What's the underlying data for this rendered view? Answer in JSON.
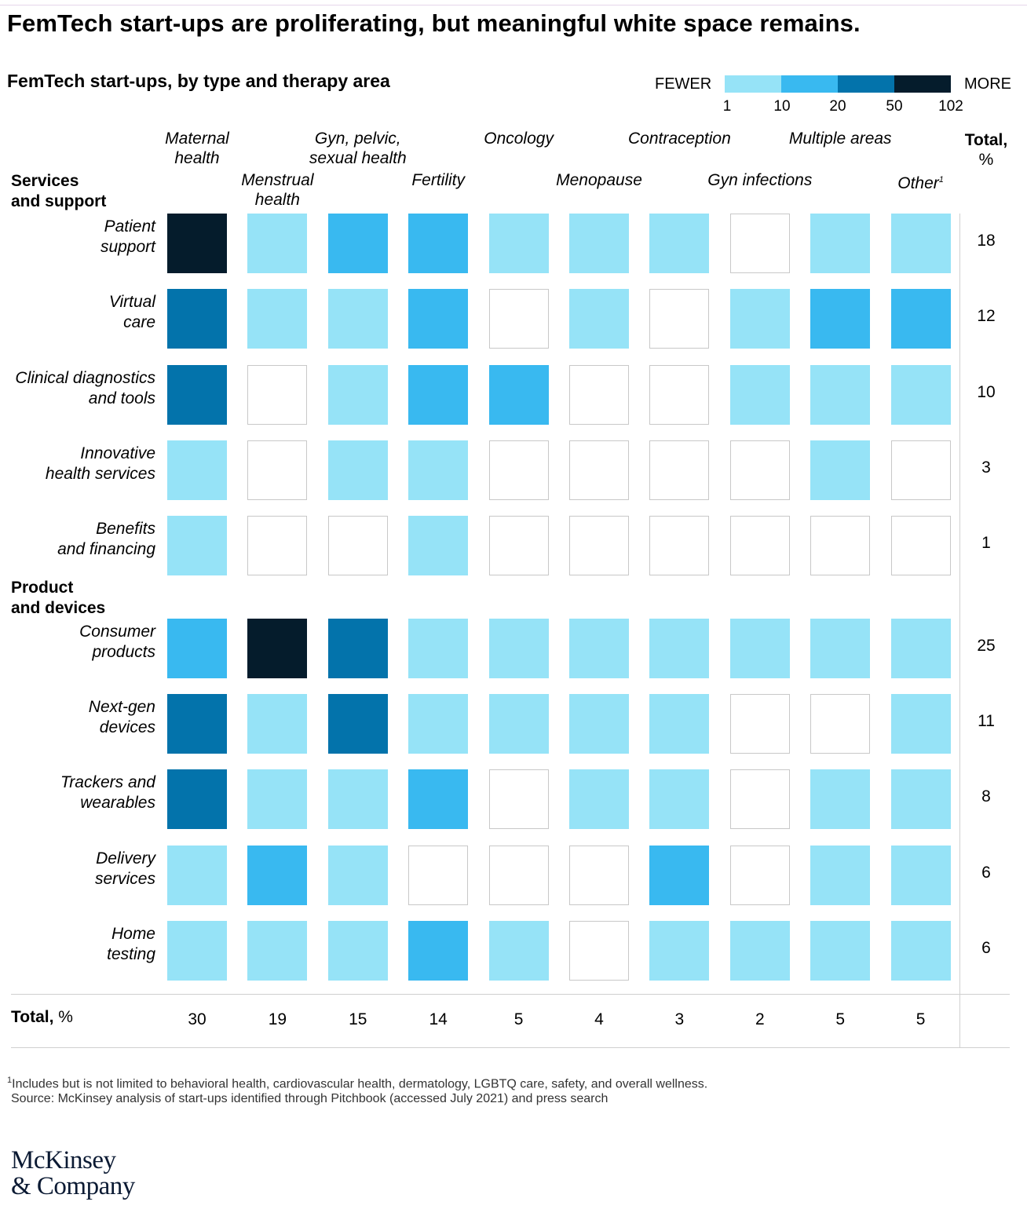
{
  "title": "FemTech start-ups are proliferating, but meaningful white space remains.",
  "subtitle": "FemTech start-ups, by type and therapy area",
  "legend": {
    "fewer_label": "FEWER",
    "more_label": "MORE",
    "ticks": [
      "1",
      "10",
      "20",
      "50",
      "102"
    ],
    "colors": [
      "#96e3f7",
      "#39b9f0",
      "#0373ab",
      "#051c2c"
    ]
  },
  "colors": {
    "empty": "#ffffff",
    "empty_border": "#c8c8c8",
    "rule": "#cfcfcf",
    "logo": "#0b1a33"
  },
  "total_header": {
    "label": "Total,",
    "unit": "%"
  },
  "sections": {
    "services": "Services\nand support",
    "products": "Product\nand devices"
  },
  "totals_row": {
    "label": "Total,",
    "unit": " %"
  },
  "footnote": {
    "marker": "1",
    "text": "Includes but is not limited to behavioral health, cardiovascular health, dermatology, LGBTQ care, safety, and overall wellness."
  },
  "source": "Source: McKinsey analysis of start-ups identified through Pitchbook (accessed July 2021) and press search",
  "logo": {
    "line1": "McKinsey",
    "line2": "& Company"
  },
  "chart_data": {
    "type": "heatmap",
    "title": "FemTech start-ups, by type and therapy area",
    "levels": [
      "none",
      "1-10",
      "10-20",
      "20-50",
      "50-102"
    ],
    "columns": [
      {
        "name": "Maternal\nhealth",
        "total": "30"
      },
      {
        "name": "Menstrual\nhealth",
        "total": "19"
      },
      {
        "name": "Gyn, pelvic,\nsexual health",
        "total": "15"
      },
      {
        "name": "Fertility",
        "total": "14"
      },
      {
        "name": "Oncology",
        "total": "5"
      },
      {
        "name": "Menopause",
        "total": "4"
      },
      {
        "name": "Contraception",
        "total": "3"
      },
      {
        "name": "Gyn infections",
        "total": "2"
      },
      {
        "name": "Multiple areas",
        "total": "5"
      },
      {
        "name": "Other",
        "total": "5",
        "note": "1"
      }
    ],
    "rows": [
      {
        "section": "services",
        "name": "Patient\nsupport",
        "total": "18",
        "levels": [
          4,
          1,
          2,
          2,
          1,
          1,
          1,
          0,
          1,
          1
        ]
      },
      {
        "section": "services",
        "name": "Virtual\ncare",
        "total": "12",
        "levels": [
          3,
          1,
          1,
          2,
          0,
          1,
          0,
          1,
          2,
          2
        ]
      },
      {
        "section": "services",
        "name": "Clinical diagnostics\nand tools",
        "total": "10",
        "levels": [
          3,
          0,
          1,
          2,
          2,
          0,
          0,
          1,
          1,
          1
        ]
      },
      {
        "section": "services",
        "name": "Innovative\nhealth services",
        "total": "3",
        "levels": [
          1,
          0,
          1,
          1,
          0,
          0,
          0,
          0,
          1,
          0
        ]
      },
      {
        "section": "services",
        "name": "Benefits\nand financing",
        "total": "1",
        "levels": [
          1,
          0,
          0,
          1,
          0,
          0,
          0,
          0,
          0,
          0
        ]
      },
      {
        "section": "products",
        "name": "Consumer\nproducts",
        "total": "25",
        "levels": [
          2,
          4,
          3,
          1,
          1,
          1,
          1,
          1,
          1,
          1
        ]
      },
      {
        "section": "products",
        "name": "Next-gen\ndevices",
        "total": "11",
        "levels": [
          3,
          1,
          3,
          1,
          1,
          1,
          1,
          0,
          0,
          1
        ]
      },
      {
        "section": "products",
        "name": "Trackers and\nwearables",
        "total": "8",
        "levels": [
          3,
          1,
          1,
          2,
          0,
          1,
          1,
          0,
          1,
          1
        ]
      },
      {
        "section": "products",
        "name": "Delivery\nservices",
        "total": "6",
        "levels": [
          1,
          2,
          1,
          0,
          0,
          0,
          2,
          0,
          1,
          1
        ]
      },
      {
        "section": "products",
        "name": "Home\ntesting",
        "total": "6",
        "levels": [
          1,
          1,
          1,
          2,
          1,
          0,
          1,
          1,
          1,
          1
        ]
      }
    ]
  }
}
